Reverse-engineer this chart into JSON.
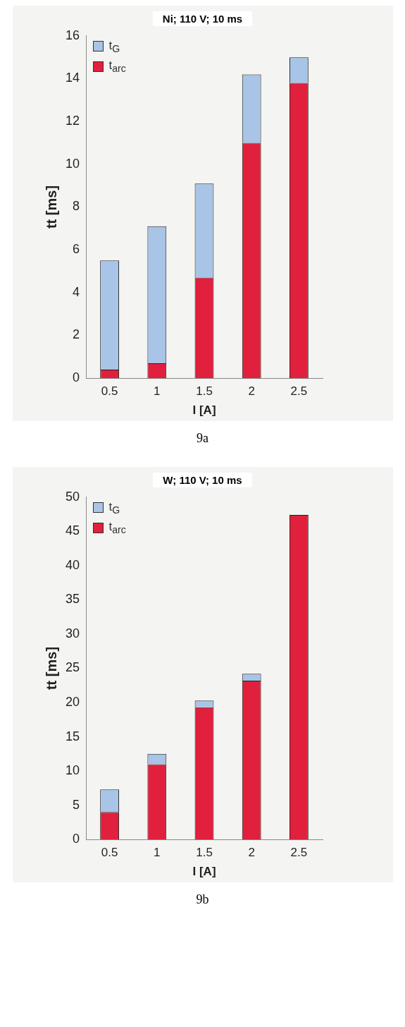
{
  "chart_data": [
    {
      "type": "bar",
      "title": "Ni; 110 V; 10 ms",
      "xlabel": "I [A]",
      "ylabel": "tt [ms]",
      "categories": [
        "0.5",
        "1",
        "1.5",
        "2",
        "2.5"
      ],
      "stacked": true,
      "series": [
        {
          "name": "t$_{arc}$",
          "color": "#e0203c",
          "values": [
            0.4,
            0.7,
            4.7,
            11.0,
            13.8
          ]
        },
        {
          "name": "t$_{G}$",
          "color": "#a8c4e6",
          "values": [
            5.1,
            6.4,
            4.4,
            3.2,
            1.2
          ]
        }
      ],
      "ylim": [
        0,
        16
      ],
      "yticks": [
        0,
        2,
        4,
        6,
        8,
        10,
        12,
        14,
        16
      ],
      "grid": false,
      "legend": "top left",
      "annotations": [
        "9a"
      ]
    },
    {
      "type": "bar",
      "title": "W; 110 V; 10 ms",
      "xlabel": "I [A]",
      "ylabel": "tt [ms]",
      "categories": [
        "0.5",
        "1",
        "1.5",
        "2",
        "2.5"
      ],
      "stacked": true,
      "series": [
        {
          "name": "t$_{arc}$",
          "color": "#e0203c",
          "values": [
            4.0,
            11.0,
            19.3,
            23.2,
            47.4
          ]
        },
        {
          "name": "t$_{G}$",
          "color": "#a8c4e6",
          "values": [
            3.3,
            1.5,
            1.0,
            1.0,
            0
          ]
        }
      ],
      "ylim": [
        0,
        50
      ],
      "yticks": [
        0,
        5,
        10,
        15,
        20,
        25,
        30,
        35,
        40,
        45,
        50
      ],
      "grid": false,
      "legend": "top left",
      "annotations": [
        "9b"
      ]
    }
  ]
}
